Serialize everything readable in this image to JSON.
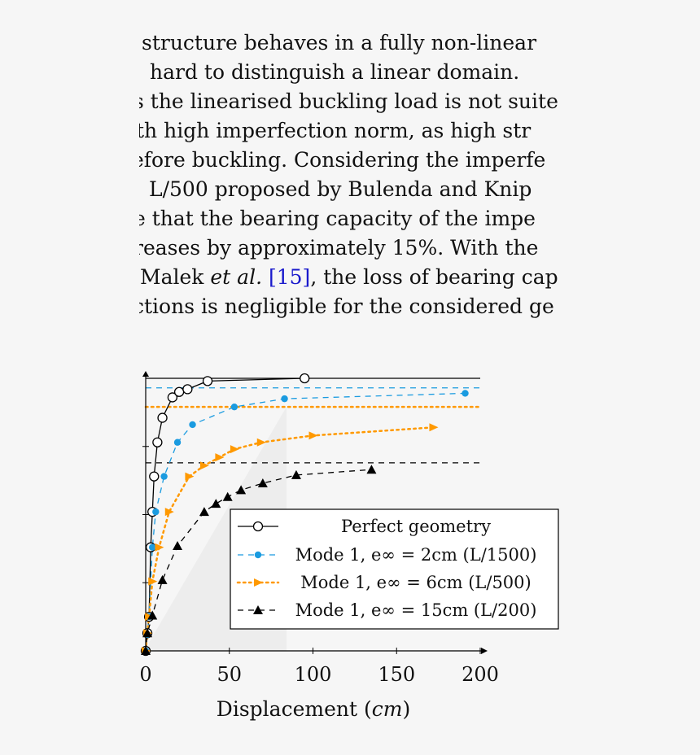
{
  "paragraph": {
    "lines": [
      {
        "text": "structure behaves in a fully non-linear"
      },
      {
        "text": "hard to distinguish a linear domain."
      },
      {
        "text": "s the linearised buckling load is not suite"
      },
      {
        "text": "th high imperfection norm, as high str"
      },
      {
        "text": "efore buckling. Considering the imperfe"
      },
      {
        "text": "L/500 proposed by Bulenda and Knip"
      },
      {
        "text": "e that the bearing capacity of the impe"
      },
      {
        "text": "reases by approximately 15%. With the"
      },
      {
        "before": "Malek ",
        "italic": "et al.",
        "mid": " ",
        "cite": "[15]",
        "after": ", the loss of bearing cap"
      },
      {
        "text": "ctions is negligible for the considered ge"
      }
    ]
  },
  "chart_data": {
    "type": "line",
    "xlabel": "Displacement (cm)",
    "xlim": [
      0,
      200
    ],
    "xticks": [
      0,
      50,
      100,
      150,
      200
    ],
    "x_tick_labels": [
      "0",
      "50",
      "100",
      "150",
      "200"
    ],
    "ylim": [
      0,
      1.0
    ],
    "y_tick_labels_visible": false,
    "grid": false,
    "legend_position": "bottom-right",
    "series": [
      {
        "name": "Perfect geometry",
        "color": "#000000",
        "line": "solid",
        "marker": "open-circle",
        "x": [
          0,
          1,
          2,
          3,
          4,
          5,
          7,
          10,
          16,
          20,
          25,
          37,
          95
        ],
        "y": [
          0,
          0.065,
          0.125,
          0.38,
          0.51,
          0.64,
          0.765,
          0.855,
          0.93,
          0.95,
          0.96,
          0.99,
          1.0
        ],
        "asymptote": 1.0
      },
      {
        "name": "Mode 1, e∞ = 2cm (L/1500)",
        "color": "#1a9be0",
        "line": "dashed",
        "marker": "filled-circle",
        "x": [
          0,
          1,
          2,
          4,
          6,
          11,
          19,
          28,
          53,
          83,
          191
        ],
        "y": [
          0,
          0.06,
          0.125,
          0.38,
          0.51,
          0.64,
          0.765,
          0.83,
          0.895,
          0.925,
          0.945
        ],
        "asymptote": 0.965
      },
      {
        "name": "Mode 1, e∞ = 6cm (L/500)",
        "color": "#ff9900",
        "line": "dotted",
        "marker": "filled-triangle-right",
        "x": [
          0,
          1,
          2,
          4,
          8,
          14,
          26,
          35,
          44,
          53,
          69,
          100,
          172
        ],
        "y": [
          0,
          0.065,
          0.125,
          0.255,
          0.38,
          0.51,
          0.64,
          0.68,
          0.71,
          0.74,
          0.765,
          0.79,
          0.82
        ],
        "asymptote": 0.895
      },
      {
        "name": "Mode 1, e∞ = 15cm (L/200)",
        "color": "#000000",
        "line": "dashed",
        "marker": "filled-triangle-up",
        "x": [
          0,
          1,
          4,
          10,
          19,
          35,
          42,
          49,
          57,
          70,
          90,
          135
        ],
        "y": [
          0,
          0.065,
          0.13,
          0.26,
          0.385,
          0.51,
          0.54,
          0.565,
          0.59,
          0.615,
          0.645,
          0.665
        ],
        "asymptote": 0.69
      }
    ]
  }
}
